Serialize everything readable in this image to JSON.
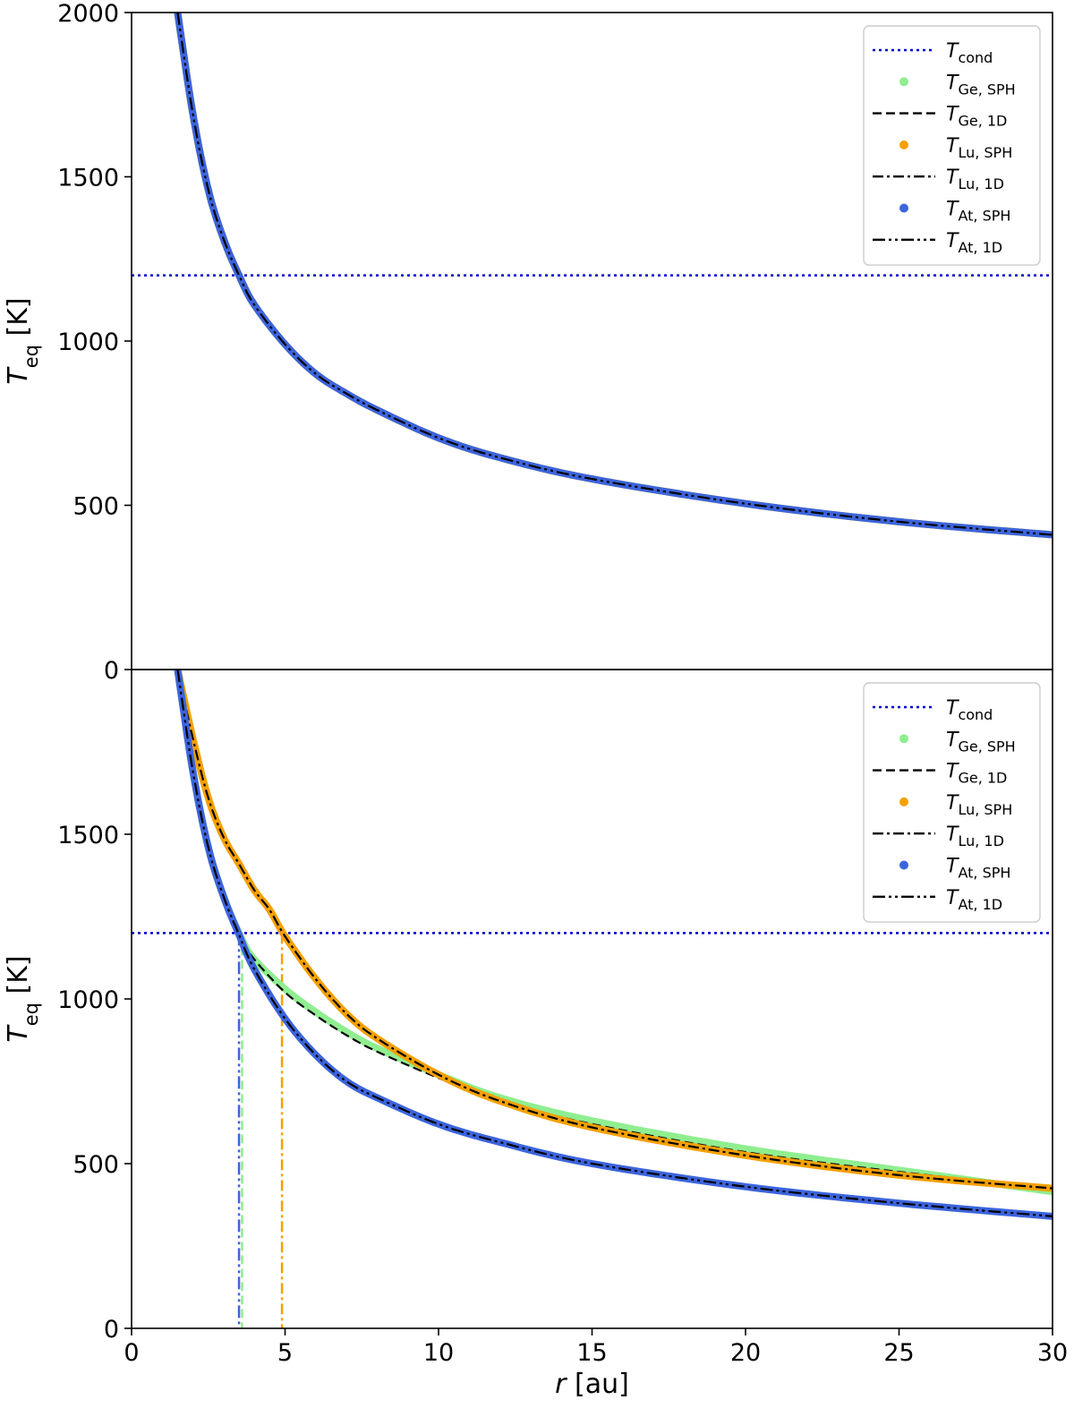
{
  "chart_data": [
    {
      "type": "line",
      "panel": "top",
      "title": "",
      "xlabel": "",
      "ylabel": {
        "base": "T",
        "sub": "eq",
        "unit": " [K]"
      },
      "xlim": [
        0,
        30
      ],
      "ylim": [
        0,
        2000
      ],
      "yticks": [
        "0",
        "500",
        "1000",
        "1500",
        "2000"
      ],
      "xticks": [],
      "grid": false,
      "legend_position": "top-right",
      "hlines": [
        {
          "name": "T_cond",
          "y": 1200,
          "color": "#0000cc",
          "style": "dotted"
        }
      ],
      "vlines": [],
      "series": [
        {
          "key": "ge_sph",
          "label_base": "T",
          "label_sub": "Ge, SPH",
          "color": "#90ee90",
          "style": "markers",
          "points": [
            [
              1.5,
              2000
            ],
            [
              2,
              1690
            ],
            [
              2.5,
              1460
            ],
            [
              3,
              1310
            ],
            [
              3.5,
              1200
            ],
            [
              4,
              1110
            ],
            [
              5,
              990
            ],
            [
              6,
              900
            ],
            [
              7,
              840
            ],
            [
              8,
              790
            ],
            [
              10,
              705
            ],
            [
              12,
              645
            ],
            [
              15,
              580
            ],
            [
              20,
              505
            ],
            [
              25,
              450
            ],
            [
              30,
              410
            ]
          ]
        },
        {
          "key": "ge_1d",
          "label_base": "T",
          "label_sub": "Ge, 1D",
          "color": "#000000",
          "style": "dashed",
          "points": [
            [
              1.5,
              2000
            ],
            [
              2,
              1690
            ],
            [
              2.5,
              1460
            ],
            [
              3,
              1310
            ],
            [
              3.5,
              1200
            ],
            [
              4,
              1110
            ],
            [
              5,
              990
            ],
            [
              6,
              900
            ],
            [
              7,
              840
            ],
            [
              8,
              790
            ],
            [
              10,
              705
            ],
            [
              12,
              645
            ],
            [
              15,
              580
            ],
            [
              20,
              505
            ],
            [
              25,
              450
            ],
            [
              30,
              410
            ]
          ]
        },
        {
          "key": "lu_sph",
          "label_base": "T",
          "label_sub": "Lu, SPH",
          "color": "#f5a000",
          "style": "markers",
          "points": [
            [
              1.5,
              2000
            ],
            [
              2,
              1690
            ],
            [
              2.5,
              1460
            ],
            [
              3,
              1310
            ],
            [
              3.5,
              1200
            ],
            [
              4,
              1110
            ],
            [
              5,
              990
            ],
            [
              6,
              900
            ],
            [
              7,
              840
            ],
            [
              8,
              790
            ],
            [
              10,
              705
            ],
            [
              12,
              645
            ],
            [
              15,
              580
            ],
            [
              20,
              505
            ],
            [
              25,
              450
            ],
            [
              30,
              410
            ]
          ]
        },
        {
          "key": "lu_1d",
          "label_base": "T",
          "label_sub": "Lu, 1D",
          "color": "#000000",
          "style": "dashdot",
          "points": [
            [
              1.5,
              2000
            ],
            [
              2,
              1690
            ],
            [
              2.5,
              1460
            ],
            [
              3,
              1310
            ],
            [
              3.5,
              1200
            ],
            [
              4,
              1110
            ],
            [
              5,
              990
            ],
            [
              6,
              900
            ],
            [
              7,
              840
            ],
            [
              8,
              790
            ],
            [
              10,
              705
            ],
            [
              12,
              645
            ],
            [
              15,
              580
            ],
            [
              20,
              505
            ],
            [
              25,
              450
            ],
            [
              30,
              410
            ]
          ]
        },
        {
          "key": "at_sph",
          "label_base": "T",
          "label_sub": "At, SPH",
          "color": "#3c64dc",
          "style": "markers",
          "points": [
            [
              1.5,
              2000
            ],
            [
              2,
              1690
            ],
            [
              2.5,
              1460
            ],
            [
              3,
              1310
            ],
            [
              3.5,
              1200
            ],
            [
              4,
              1110
            ],
            [
              5,
              990
            ],
            [
              6,
              900
            ],
            [
              7,
              840
            ],
            [
              8,
              790
            ],
            [
              10,
              705
            ],
            [
              12,
              645
            ],
            [
              15,
              580
            ],
            [
              20,
              505
            ],
            [
              25,
              450
            ],
            [
              30,
              410
            ]
          ]
        },
        {
          "key": "at_1d",
          "label_base": "T",
          "label_sub": "At, 1D",
          "color": "#000000",
          "style": "dashdotdot",
          "points": [
            [
              1.5,
              2000
            ],
            [
              2,
              1690
            ],
            [
              2.5,
              1460
            ],
            [
              3,
              1310
            ],
            [
              3.5,
              1200
            ],
            [
              4,
              1110
            ],
            [
              5,
              990
            ],
            [
              6,
              900
            ],
            [
              7,
              840
            ],
            [
              8,
              790
            ],
            [
              10,
              705
            ],
            [
              12,
              645
            ],
            [
              15,
              580
            ],
            [
              20,
              505
            ],
            [
              25,
              450
            ],
            [
              30,
              410
            ]
          ]
        }
      ]
    },
    {
      "type": "line",
      "panel": "bottom",
      "title": "",
      "xlabel": {
        "base": "r",
        "unit": " [au]"
      },
      "ylabel": {
        "base": "T",
        "sub": "eq",
        "unit": " [K]"
      },
      "xlim": [
        0,
        30
      ],
      "ylim": [
        0,
        2000
      ],
      "yticks": [
        "0",
        "500",
        "1000",
        "1500"
      ],
      "xticks": [
        "0",
        "5",
        "10",
        "15",
        "20",
        "25",
        "30"
      ],
      "grid": false,
      "legend_position": "top-right",
      "hlines": [
        {
          "name": "T_cond",
          "y": 1200,
          "color": "#0000cc",
          "style": "dotted"
        }
      ],
      "vlines": [
        {
          "x": 3.5,
          "color": "#3c64dc",
          "style": "dashdotdot"
        },
        {
          "x": 3.6,
          "color": "#90ee90",
          "style": "dashed"
        },
        {
          "x": 4.9,
          "color": "#f5a000",
          "style": "dashdot"
        }
      ],
      "series": [
        {
          "key": "ge_sph",
          "label_base": "T",
          "label_sub": "Ge, SPH",
          "color": "#90ee90",
          "style": "markers",
          "points": [
            [
              1.5,
              2000
            ],
            [
              2,
              1690
            ],
            [
              2.5,
              1460
            ],
            [
              3,
              1310
            ],
            [
              3.6,
              1180
            ],
            [
              4,
              1120
            ],
            [
              5,
              1030
            ],
            [
              6,
              960
            ],
            [
              7,
              900
            ],
            [
              8,
              850
            ],
            [
              10,
              770
            ],
            [
              12,
              700
            ],
            [
              15,
              630
            ],
            [
              20,
              545
            ],
            [
              25,
              480
            ],
            [
              30,
              415
            ]
          ]
        },
        {
          "key": "ge_1d",
          "label_base": "T",
          "label_sub": "Ge, 1D",
          "color": "#000000",
          "style": "dashed",
          "points": [
            [
              1.5,
              2000
            ],
            [
              2,
              1690
            ],
            [
              2.5,
              1460
            ],
            [
              3,
              1310
            ],
            [
              3.6,
              1180
            ],
            [
              4,
              1120
            ],
            [
              5,
              1020
            ],
            [
              6,
              950
            ],
            [
              7,
              890
            ],
            [
              8,
              840
            ],
            [
              10,
              760
            ],
            [
              12,
              690
            ],
            [
              15,
              620
            ],
            [
              20,
              535
            ],
            [
              25,
              475
            ],
            [
              30,
              425
            ]
          ]
        },
        {
          "key": "lu_sph",
          "label_base": "T",
          "label_sub": "Lu, SPH",
          "color": "#f5a000",
          "style": "markers",
          "points": [
            [
              1.5,
              2000
            ],
            [
              2,
              1790
            ],
            [
              2.5,
              1610
            ],
            [
              3,
              1490
            ],
            [
              3.5,
              1410
            ],
            [
              4,
              1330
            ],
            [
              4.5,
              1270
            ],
            [
              5,
              1190
            ],
            [
              6,
              1060
            ],
            [
              7,
              955
            ],
            [
              8,
              880
            ],
            [
              10,
              770
            ],
            [
              12,
              690
            ],
            [
              15,
              610
            ],
            [
              20,
              525
            ],
            [
              25,
              465
            ],
            [
              30,
              425
            ]
          ]
        },
        {
          "key": "lu_1d",
          "label_base": "T",
          "label_sub": "Lu, 1D",
          "color": "#000000",
          "style": "dashdot",
          "points": [
            [
              1.5,
              2000
            ],
            [
              2,
              1790
            ],
            [
              2.5,
              1610
            ],
            [
              3,
              1490
            ],
            [
              3.5,
              1410
            ],
            [
              4,
              1330
            ],
            [
              4.5,
              1270
            ],
            [
              5,
              1190
            ],
            [
              6,
              1060
            ],
            [
              7,
              955
            ],
            [
              8,
              880
            ],
            [
              10,
              770
            ],
            [
              12,
              690
            ],
            [
              15,
              610
            ],
            [
              20,
              525
            ],
            [
              25,
              465
            ],
            [
              30,
              425
            ]
          ]
        },
        {
          "key": "at_sph",
          "label_base": "T",
          "label_sub": "At, SPH",
          "color": "#3c64dc",
          "style": "markers",
          "points": [
            [
              1.5,
              2000
            ],
            [
              2,
              1690
            ],
            [
              2.5,
              1460
            ],
            [
              3,
              1310
            ],
            [
              3.5,
              1195
            ],
            [
              4,
              1090
            ],
            [
              5,
              940
            ],
            [
              6,
              830
            ],
            [
              7,
              750
            ],
            [
              8,
              700
            ],
            [
              10,
              620
            ],
            [
              12,
              565
            ],
            [
              15,
              500
            ],
            [
              20,
              430
            ],
            [
              25,
              380
            ],
            [
              30,
              340
            ]
          ]
        },
        {
          "key": "at_1d",
          "label_base": "T",
          "label_sub": "At, 1D",
          "color": "#000000",
          "style": "dashdotdot",
          "points": [
            [
              1.5,
              2000
            ],
            [
              2,
              1690
            ],
            [
              2.5,
              1460
            ],
            [
              3,
              1310
            ],
            [
              3.5,
              1195
            ],
            [
              4,
              1090
            ],
            [
              5,
              940
            ],
            [
              6,
              830
            ],
            [
              7,
              750
            ],
            [
              8,
              700
            ],
            [
              10,
              620
            ],
            [
              12,
              565
            ],
            [
              15,
              500
            ],
            [
              20,
              430
            ],
            [
              25,
              380
            ],
            [
              30,
              340
            ]
          ]
        }
      ]
    }
  ],
  "legend": {
    "cond_base": "T",
    "cond_sub": "cond"
  },
  "colors": {
    "cond": "#0000cc",
    "ge": "#90ee90",
    "lu": "#f5a000",
    "at": "#3c64dc",
    "line": "#000000"
  }
}
